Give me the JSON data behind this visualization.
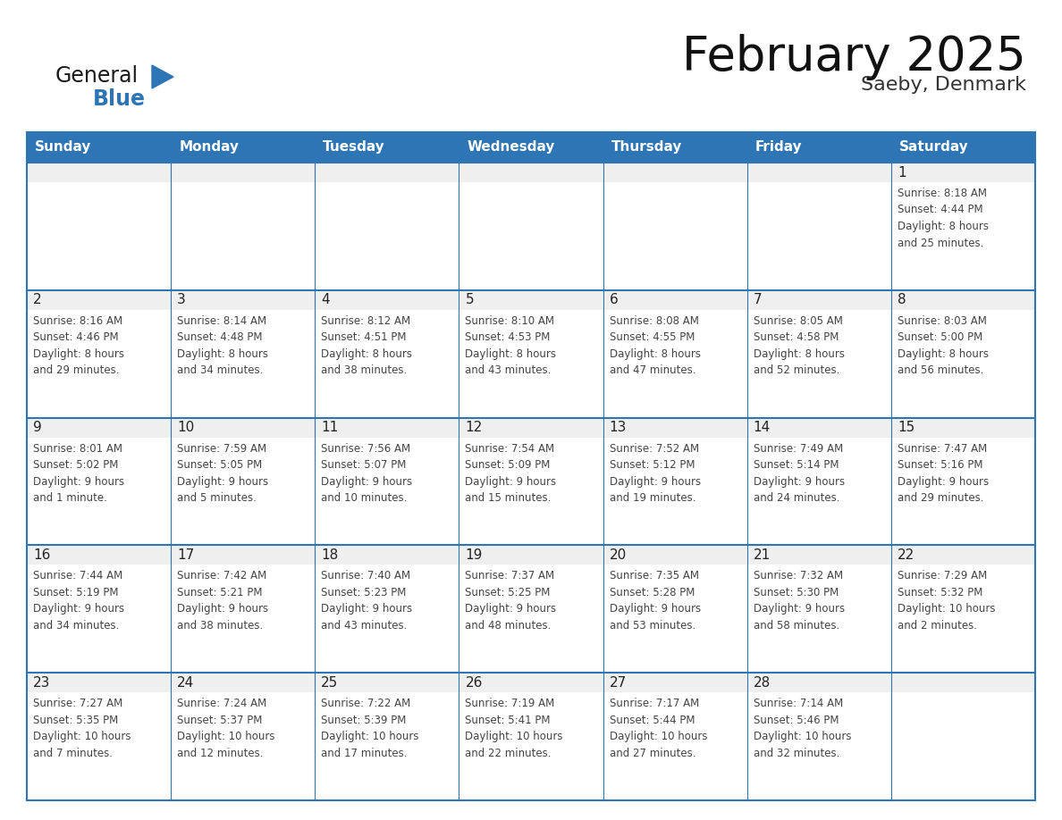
{
  "title": "February 2025",
  "subtitle": "Saeby, Denmark",
  "header_bg": "#2E75B6",
  "header_text_color": "#FFFFFF",
  "cell_top_bg": "#EFEFEF",
  "cell_body_bg": "#FFFFFF",
  "cell_border_color": "#2E75B6",
  "text_color": "#222222",
  "day_num_color": "#222222",
  "info_text_color": "#444444",
  "days_of_week": [
    "Sunday",
    "Monday",
    "Tuesday",
    "Wednesday",
    "Thursday",
    "Friday",
    "Saturday"
  ],
  "logo_general_color": "#1a1a1a",
  "logo_blue_color": "#2E75B6",
  "fig_bg": "#FFFFFF",
  "weeks": [
    [
      {
        "day": null,
        "info": null
      },
      {
        "day": null,
        "info": null
      },
      {
        "day": null,
        "info": null
      },
      {
        "day": null,
        "info": null
      },
      {
        "day": null,
        "info": null
      },
      {
        "day": null,
        "info": null
      },
      {
        "day": 1,
        "info": "Sunrise: 8:18 AM\nSunset: 4:44 PM\nDaylight: 8 hours\nand 25 minutes."
      }
    ],
    [
      {
        "day": 2,
        "info": "Sunrise: 8:16 AM\nSunset: 4:46 PM\nDaylight: 8 hours\nand 29 minutes."
      },
      {
        "day": 3,
        "info": "Sunrise: 8:14 AM\nSunset: 4:48 PM\nDaylight: 8 hours\nand 34 minutes."
      },
      {
        "day": 4,
        "info": "Sunrise: 8:12 AM\nSunset: 4:51 PM\nDaylight: 8 hours\nand 38 minutes."
      },
      {
        "day": 5,
        "info": "Sunrise: 8:10 AM\nSunset: 4:53 PM\nDaylight: 8 hours\nand 43 minutes."
      },
      {
        "day": 6,
        "info": "Sunrise: 8:08 AM\nSunset: 4:55 PM\nDaylight: 8 hours\nand 47 minutes."
      },
      {
        "day": 7,
        "info": "Sunrise: 8:05 AM\nSunset: 4:58 PM\nDaylight: 8 hours\nand 52 minutes."
      },
      {
        "day": 8,
        "info": "Sunrise: 8:03 AM\nSunset: 5:00 PM\nDaylight: 8 hours\nand 56 minutes."
      }
    ],
    [
      {
        "day": 9,
        "info": "Sunrise: 8:01 AM\nSunset: 5:02 PM\nDaylight: 9 hours\nand 1 minute."
      },
      {
        "day": 10,
        "info": "Sunrise: 7:59 AM\nSunset: 5:05 PM\nDaylight: 9 hours\nand 5 minutes."
      },
      {
        "day": 11,
        "info": "Sunrise: 7:56 AM\nSunset: 5:07 PM\nDaylight: 9 hours\nand 10 minutes."
      },
      {
        "day": 12,
        "info": "Sunrise: 7:54 AM\nSunset: 5:09 PM\nDaylight: 9 hours\nand 15 minutes."
      },
      {
        "day": 13,
        "info": "Sunrise: 7:52 AM\nSunset: 5:12 PM\nDaylight: 9 hours\nand 19 minutes."
      },
      {
        "day": 14,
        "info": "Sunrise: 7:49 AM\nSunset: 5:14 PM\nDaylight: 9 hours\nand 24 minutes."
      },
      {
        "day": 15,
        "info": "Sunrise: 7:47 AM\nSunset: 5:16 PM\nDaylight: 9 hours\nand 29 minutes."
      }
    ],
    [
      {
        "day": 16,
        "info": "Sunrise: 7:44 AM\nSunset: 5:19 PM\nDaylight: 9 hours\nand 34 minutes."
      },
      {
        "day": 17,
        "info": "Sunrise: 7:42 AM\nSunset: 5:21 PM\nDaylight: 9 hours\nand 38 minutes."
      },
      {
        "day": 18,
        "info": "Sunrise: 7:40 AM\nSunset: 5:23 PM\nDaylight: 9 hours\nand 43 minutes."
      },
      {
        "day": 19,
        "info": "Sunrise: 7:37 AM\nSunset: 5:25 PM\nDaylight: 9 hours\nand 48 minutes."
      },
      {
        "day": 20,
        "info": "Sunrise: 7:35 AM\nSunset: 5:28 PM\nDaylight: 9 hours\nand 53 minutes."
      },
      {
        "day": 21,
        "info": "Sunrise: 7:32 AM\nSunset: 5:30 PM\nDaylight: 9 hours\nand 58 minutes."
      },
      {
        "day": 22,
        "info": "Sunrise: 7:29 AM\nSunset: 5:32 PM\nDaylight: 10 hours\nand 2 minutes."
      }
    ],
    [
      {
        "day": 23,
        "info": "Sunrise: 7:27 AM\nSunset: 5:35 PM\nDaylight: 10 hours\nand 7 minutes."
      },
      {
        "day": 24,
        "info": "Sunrise: 7:24 AM\nSunset: 5:37 PM\nDaylight: 10 hours\nand 12 minutes."
      },
      {
        "day": 25,
        "info": "Sunrise: 7:22 AM\nSunset: 5:39 PM\nDaylight: 10 hours\nand 17 minutes."
      },
      {
        "day": 26,
        "info": "Sunrise: 7:19 AM\nSunset: 5:41 PM\nDaylight: 10 hours\nand 22 minutes."
      },
      {
        "day": 27,
        "info": "Sunrise: 7:17 AM\nSunset: 5:44 PM\nDaylight: 10 hours\nand 27 minutes."
      },
      {
        "day": 28,
        "info": "Sunrise: 7:14 AM\nSunset: 5:46 PM\nDaylight: 10 hours\nand 32 minutes."
      },
      {
        "day": null,
        "info": null
      }
    ]
  ]
}
